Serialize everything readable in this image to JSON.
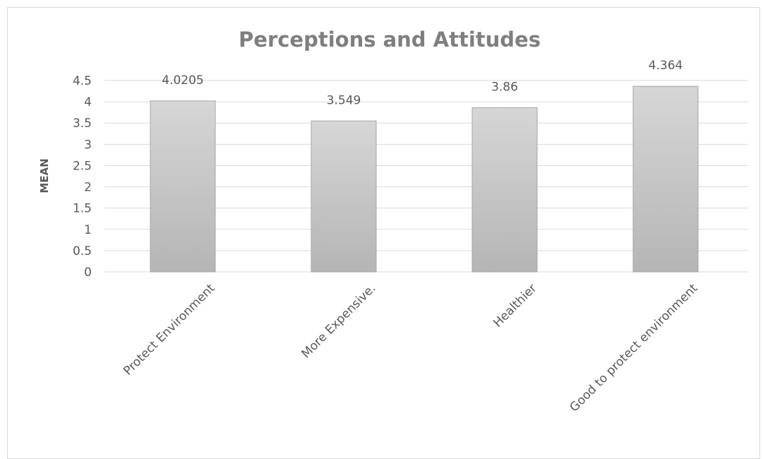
{
  "chart_data": {
    "type": "bar",
    "title": "Perceptions and Attitudes",
    "xlabel": "",
    "ylabel": "MEAN",
    "categories": [
      "Protect Environment",
      "More Expensive.",
      "Healthier",
      "Good to protect environment"
    ],
    "values": [
      4.0205,
      3.549,
      3.86,
      4.364
    ],
    "data_labels": [
      "4.0205",
      "3.549",
      "3.86",
      "4.364"
    ],
    "ylim": [
      0,
      4.5
    ],
    "yticks": [
      "0",
      "0.5",
      "1",
      "1.5",
      "2",
      "2.5",
      "3",
      "3.5",
      "4",
      "4.5"
    ],
    "grid": true,
    "legend": "none",
    "colors": {
      "bar_top": "#d6d6d6",
      "bar_bottom": "#b5b5b5",
      "bar_stroke": "#a6a6a6",
      "grid": "#d9d9d9",
      "text": "#595959",
      "title": "#7f7f7f"
    }
  }
}
